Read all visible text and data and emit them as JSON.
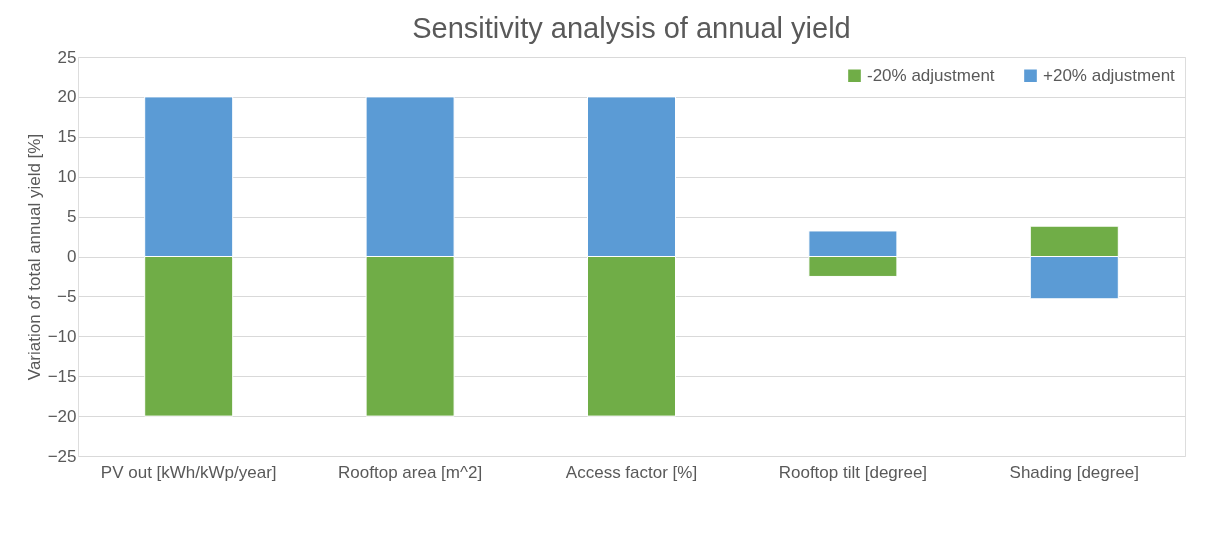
{
  "chart_data": {
    "type": "bar",
    "title": "Sensitivity analysis of annual yield",
    "ylabel": "Variation of total annual yield [%]",
    "categories": [
      "PV out [kWh/kWp/year]",
      "Rooftop area [m^2]",
      "Access factor [%]",
      "Rooftop tilt [degree]",
      "Shading [degree]"
    ],
    "series": [
      {
        "name": "-20% adjustment",
        "color": "#70ad47",
        "values": [
          -20,
          -20,
          -20,
          -2.5,
          3.8
        ]
      },
      {
        "name": "+20% adjustment",
        "color": "#5b9bd5",
        "values": [
          20,
          20,
          20,
          3.2,
          -5.3
        ]
      }
    ],
    "stacked": true,
    "ylim": [
      -25,
      25
    ],
    "yticks": [
      -25,
      -20,
      -15,
      -10,
      -5,
      0,
      5,
      10,
      15,
      20,
      25
    ],
    "grid": "y",
    "legend": "top right"
  }
}
